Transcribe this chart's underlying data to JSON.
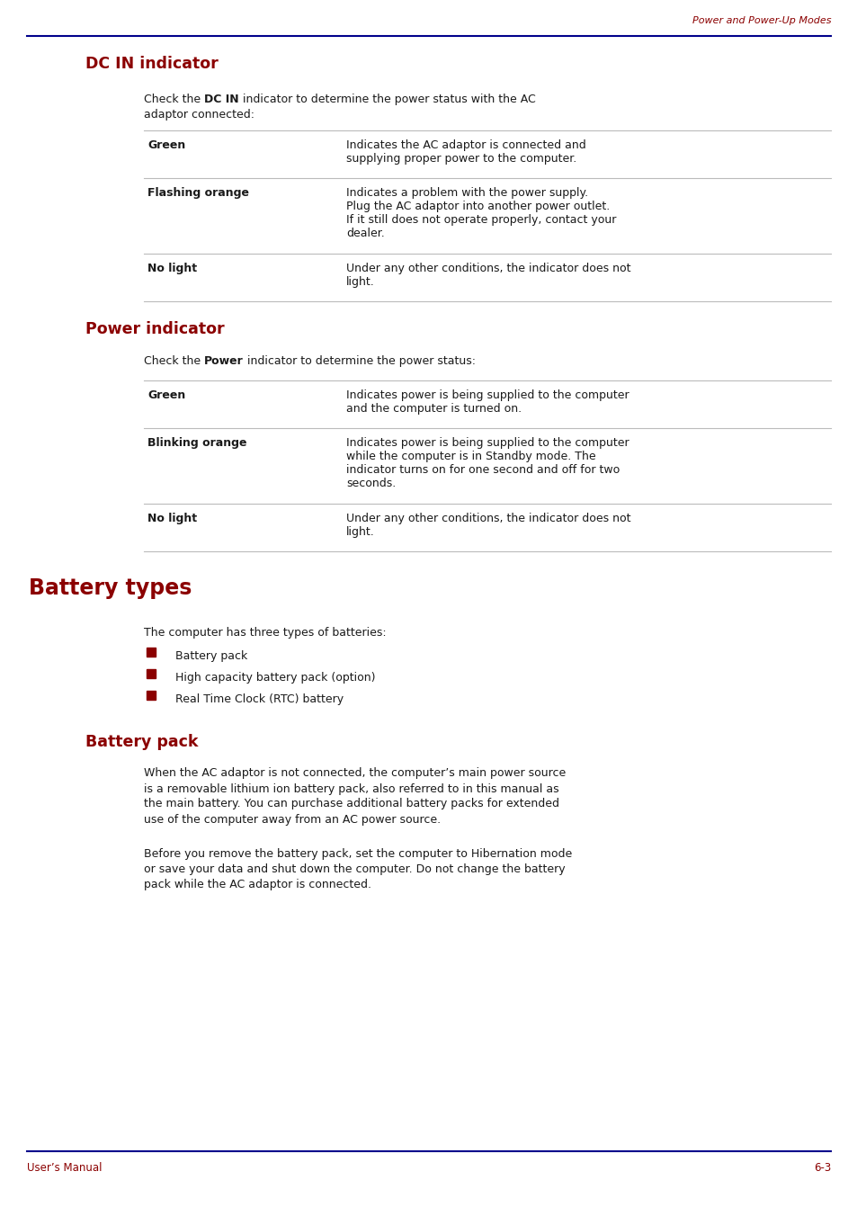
{
  "page_header_text": "Power and Power-Up Modes",
  "header_line_color": "#00008B",
  "footer_line_color": "#00008B",
  "footer_left": "User’s Manual",
  "footer_right": "6-3",
  "dark_red": "#8B0000",
  "black": "#1a1a1a",
  "gray_line": "#BBBBBB",
  "bg_color": "#FFFFFF",
  "section1_title": "DC IN indicator",
  "section2_title": "Power indicator",
  "section3_title": "Battery types",
  "section4_title": "Battery pack",
  "dc_table": [
    {
      "label": "Green",
      "desc": "Indicates the AC adaptor is connected and\nsupplying proper power to the computer."
    },
    {
      "label": "Flashing orange",
      "desc": "Indicates a problem with the power supply.\nPlug the AC adaptor into another power outlet.\nIf it still does not operate properly, contact your\ndealer."
    },
    {
      "label": "No light",
      "desc": "Under any other conditions, the indicator does not\nlight."
    }
  ],
  "power_table": [
    {
      "label": "Green",
      "desc": "Indicates power is being supplied to the computer\nand the computer is turned on."
    },
    {
      "label": "Blinking orange",
      "desc": "Indicates power is being supplied to the computer\nwhile the computer is in Standby mode. The\nindicator turns on for one second and off for two\nseconds."
    },
    {
      "label": "No light",
      "desc": "Under any other conditions, the indicator does not\nlight."
    }
  ],
  "bullet_items": [
    "Battery pack",
    "High capacity battery pack (option)",
    "Real Time Clock (RTC) battery"
  ],
  "section4_para1": "When the AC adaptor is not connected, the computer’s main power source\nis a removable lithium ion battery pack, also referred to in this manual as\nthe main battery. You can purchase additional battery packs for extended\nuse of the computer away from an AC power source.",
  "section4_para2": "Before you remove the battery pack, set the computer to Hibernation mode\nor save your data and shut down the computer. Do not change the battery\npack while the AC adaptor is connected."
}
